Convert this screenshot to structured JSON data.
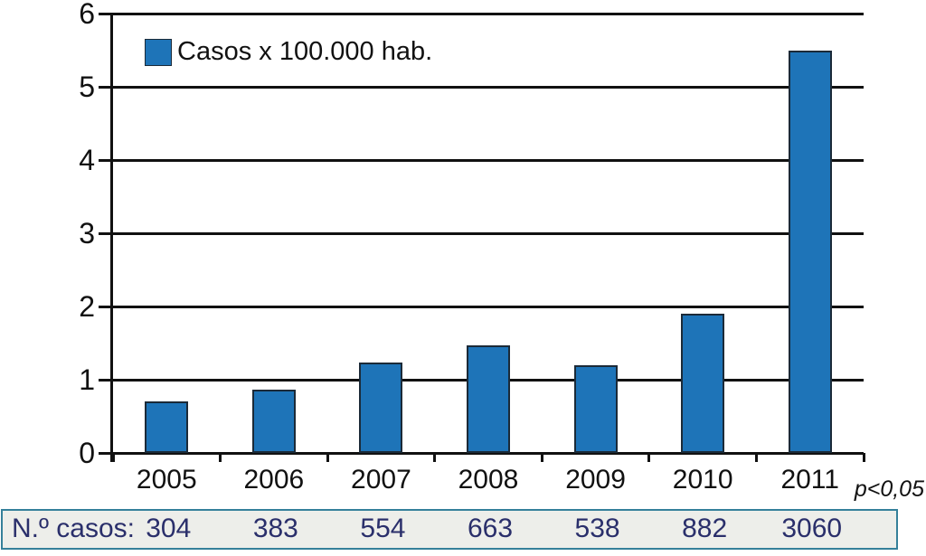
{
  "chart_data": {
    "type": "bar",
    "title": "",
    "legend": "Casos x 100.000 hab.",
    "annotation": "p<0,05",
    "categories": [
      "2005",
      "2006",
      "2007",
      "2008",
      "2009",
      "2010",
      "2011"
    ],
    "series": [
      {
        "name": "Casos x 100.000 hab.",
        "values": [
          0.7,
          0.86,
          1.23,
          1.47,
          1.2,
          1.9,
          5.5
        ]
      }
    ],
    "xlabel": "",
    "ylabel": "",
    "ylim": [
      0,
      6
    ],
    "yticks": [
      0,
      1,
      2,
      3,
      4,
      5,
      6
    ],
    "grid": true,
    "legend_position": "top-left",
    "colors": {
      "bar_fill": "#1e74b8",
      "bar_border": "#1b2a38",
      "axis": "#111111",
      "table_border": "#35809a",
      "table_bg": "#edeeea",
      "table_text": "#2a2f6b"
    }
  },
  "table": {
    "row_label": "N.º casos:",
    "values": [
      "304",
      "383",
      "554",
      "663",
      "538",
      "882",
      "3060"
    ]
  }
}
